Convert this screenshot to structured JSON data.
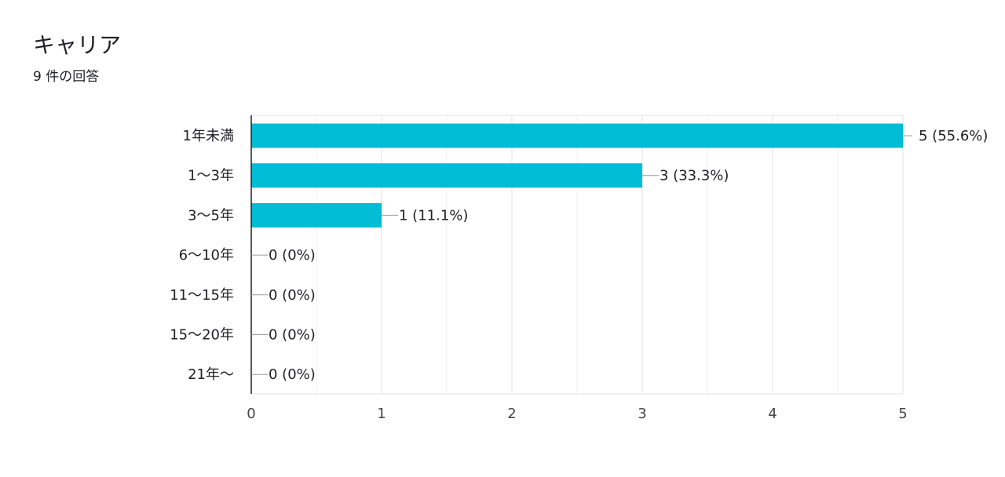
{
  "title": "キャリア",
  "subtitle": "9 件の回答",
  "chart_data": {
    "type": "bar",
    "orientation": "horizontal",
    "title": "キャリア",
    "categories": [
      "1年未満",
      "1〜3年",
      "3〜5年",
      "6〜10年",
      "11〜15年",
      "15〜20年",
      "21年〜"
    ],
    "values": [
      5,
      3,
      1,
      0,
      0,
      0,
      0
    ],
    "data_labels": [
      "5 (55.6%)",
      "3 (33.3%)",
      "1 (11.1%)",
      "0 (0%)",
      "0 (0%)",
      "0 (0%)",
      "0 (0%)"
    ],
    "xlim": [
      0,
      5
    ],
    "xticks": [
      0,
      1,
      2,
      3,
      4,
      5
    ],
    "grid": true,
    "bar_color": "#00bcd4"
  }
}
